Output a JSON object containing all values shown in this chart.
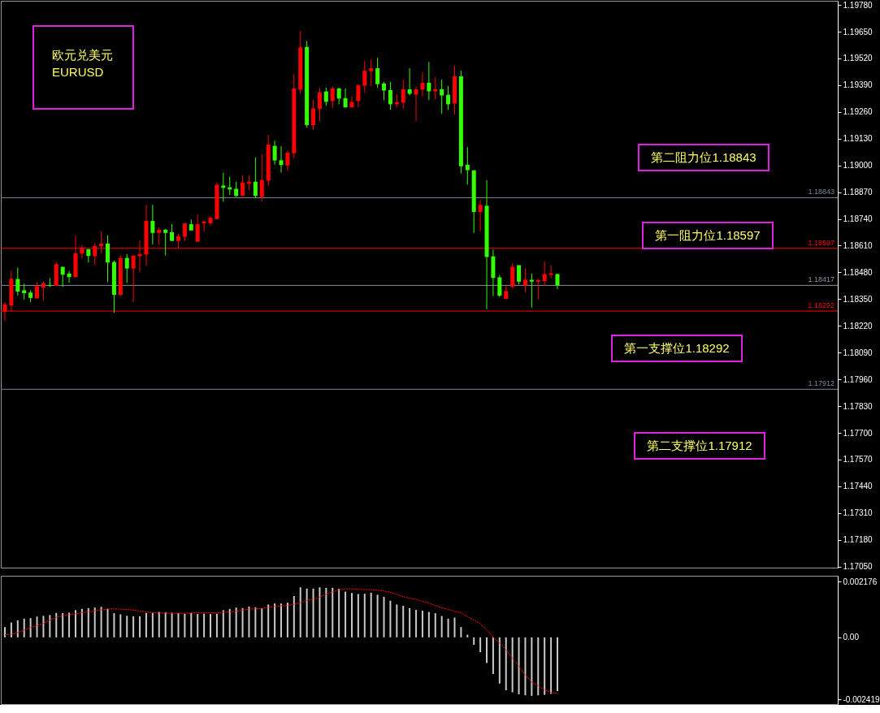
{
  "chart_data": [
    {
      "type": "candlestick",
      "title": "欧元兑美元",
      "subtitle": "EURUSD",
      "categories": [
        null,
        null,
        null,
        null,
        null,
        null,
        null,
        null,
        null,
        null,
        null,
        null,
        null,
        null,
        null,
        null,
        null,
        null,
        null,
        null,
        null,
        null,
        null,
        null,
        null,
        null,
        null,
        null,
        null,
        null,
        null,
        null,
        null,
        null,
        null,
        null,
        null,
        null,
        null,
        null,
        null,
        null,
        null,
        null,
        null,
        null,
        null,
        null,
        null,
        null,
        null,
        null,
        null,
        null,
        null,
        null,
        null,
        null,
        null,
        null,
        null,
        null,
        null,
        null,
        null,
        null,
        null,
        null,
        null,
        null,
        null,
        null,
        null,
        null,
        null,
        null,
        null,
        null,
        null,
        null,
        null,
        null,
        null,
        null,
        null,
        null,
        null,
        null,
        null,
        null,
        null,
        null,
        null,
        null,
        null,
        null,
        null,
        null,
        null,
        null,
        null,
        null,
        null,
        null,
        null,
        null,
        null,
        null,
        null,
        null,
        null,
        null,
        null,
        null,
        null,
        null,
        null,
        null,
        null,
        null,
        null,
        null,
        null,
        null,
        null,
        null,
        null,
        null,
        null,
        null
      ],
      "ohlc": [
        [
          1.18289,
          1.18335,
          1.18244,
          1.18324
        ],
        [
          1.18319,
          1.18489,
          1.18292,
          1.18449
        ],
        [
          1.18448,
          1.18503,
          1.18367,
          1.18387
        ],
        [
          1.18393,
          1.18425,
          1.18348,
          1.18379
        ],
        [
          1.18382,
          1.18393,
          1.18335,
          1.18356
        ],
        [
          1.18354,
          1.18433,
          1.18354,
          1.18413
        ],
        [
          1.18406,
          1.18436,
          1.18344,
          1.18427
        ],
        [
          1.18418,
          1.18452,
          1.1841,
          1.18414
        ],
        [
          1.18414,
          1.1853,
          1.18414,
          1.1852
        ],
        [
          1.18507,
          1.18507,
          1.1841,
          1.18469
        ],
        [
          1.18474,
          1.18487,
          1.1843,
          1.18457
        ],
        [
          1.18457,
          1.18659,
          1.18457,
          1.18573
        ],
        [
          1.18571,
          1.18612,
          1.1855,
          1.18601
        ],
        [
          1.18593,
          1.18593,
          1.18528,
          1.1856
        ],
        [
          1.18559,
          1.1862,
          1.18515,
          1.18608
        ],
        [
          1.18608,
          1.18679,
          1.18571,
          1.1862
        ],
        [
          1.1862,
          1.18659,
          1.18433,
          1.18528
        ],
        [
          1.1853,
          1.18538,
          1.18284,
          1.18371
        ],
        [
          1.18371,
          1.18562,
          1.18363,
          1.1855
        ],
        [
          1.1855,
          1.18569,
          1.18429,
          1.18499
        ],
        [
          1.18499,
          1.18562,
          1.18335,
          1.18562
        ],
        [
          1.18559,
          1.18636,
          1.18481,
          1.18569
        ],
        [
          1.18567,
          1.18808,
          1.18512,
          1.1873
        ],
        [
          1.1873,
          1.18808,
          1.18616,
          1.18672
        ],
        [
          1.18672,
          1.18698,
          1.18614,
          1.18687
        ],
        [
          1.18687,
          1.18691,
          1.18562,
          1.18672
        ],
        [
          1.18675,
          1.18714,
          1.18633,
          1.18633
        ],
        [
          1.18633,
          1.18667,
          1.18597,
          1.18655
        ],
        [
          1.18653,
          1.18718,
          1.18632,
          1.18718
        ],
        [
          1.18714,
          1.18737,
          1.18684,
          1.18684
        ],
        [
          1.18629,
          1.18761,
          1.18629,
          1.18714
        ],
        [
          1.18719,
          1.18734,
          1.18679,
          1.18727
        ],
        [
          1.18719,
          1.18754,
          1.18707,
          1.18745
        ],
        [
          1.18739,
          1.18917,
          1.18739,
          1.18906
        ],
        [
          1.18902,
          1.18964,
          1.18823,
          1.18891
        ],
        [
          1.18894,
          1.18945,
          1.18856,
          1.18883
        ],
        [
          1.18886,
          1.18921,
          1.18847,
          1.18852
        ],
        [
          1.18852,
          1.18949,
          1.18852,
          1.18917
        ],
        [
          1.18911,
          1.18952,
          1.18882,
          1.18921
        ],
        [
          1.18921,
          1.19038,
          1.18843,
          1.18852
        ],
        [
          1.18847,
          1.19054,
          1.18823,
          1.18929
        ],
        [
          1.18926,
          1.19148,
          1.18901,
          1.19101
        ],
        [
          1.19095,
          1.1912,
          1.19004,
          1.19024
        ],
        [
          1.19025,
          1.19093,
          1.18965,
          1.19002
        ],
        [
          1.19,
          1.19073,
          1.18973,
          1.19062
        ],
        [
          1.19059,
          1.19445,
          1.19035,
          1.19374
        ],
        [
          1.19368,
          1.19652,
          1.19348,
          1.19574
        ],
        [
          1.19576,
          1.19605,
          1.19184,
          1.19196
        ],
        [
          1.19196,
          1.1932,
          1.19172,
          1.19277
        ],
        [
          1.19274,
          1.19378,
          1.19215,
          1.19355
        ],
        [
          1.19359,
          1.19378,
          1.1929,
          1.19309
        ],
        [
          1.19313,
          1.19382,
          1.19278,
          1.19374
        ],
        [
          1.19374,
          1.19378,
          1.19297,
          1.19325
        ],
        [
          1.19327,
          1.19374,
          1.19282,
          1.19282
        ],
        [
          1.19282,
          1.19335,
          1.19282,
          1.19308
        ],
        [
          1.19313,
          1.19394,
          1.19282,
          1.1939
        ],
        [
          1.19387,
          1.19507,
          1.19352,
          1.1946
        ],
        [
          1.19458,
          1.19515,
          1.19387,
          1.19472
        ],
        [
          1.19472,
          1.19523,
          1.19376,
          1.19395
        ],
        [
          1.19398,
          1.19406,
          1.19317,
          1.19364
        ],
        [
          1.19366,
          1.19406,
          1.1927,
          1.19297
        ],
        [
          1.19297,
          1.19347,
          1.19282,
          1.19308
        ],
        [
          1.19305,
          1.19417,
          1.19274,
          1.1937
        ],
        [
          1.1937,
          1.19472,
          1.1934,
          1.19348
        ],
        [
          1.19344,
          1.19382,
          1.19215,
          1.1937
        ],
        [
          1.19368,
          1.19452,
          1.19336,
          1.19402
        ],
        [
          1.19402,
          1.19503,
          1.19317,
          1.1936
        ],
        [
          1.1936,
          1.19429,
          1.19321,
          1.1937
        ],
        [
          1.1937,
          1.19417,
          1.1925,
          1.1934
        ],
        [
          1.19343,
          1.19386,
          1.1927,
          1.19297
        ],
        [
          1.19301,
          1.19484,
          1.19247,
          1.19433
        ],
        [
          1.19433,
          1.1946,
          1.18961,
          1.18996
        ],
        [
          1.19003,
          1.19089,
          1.18907,
          1.18977
        ],
        [
          1.18976,
          1.18976,
          1.18672,
          1.18774
        ],
        [
          1.18774,
          1.18831,
          1.1868,
          1.18808
        ],
        [
          1.18804,
          1.18928,
          1.18301,
          1.18555
        ],
        [
          1.18558,
          1.18591,
          1.18365,
          1.18453
        ],
        [
          1.18456,
          1.18468,
          1.18361,
          1.18367
        ],
        [
          1.18352,
          1.18413,
          1.18348,
          1.18389
        ],
        [
          1.1841,
          1.18526,
          1.18404,
          1.18507
        ],
        [
          1.18515,
          1.18515,
          1.18422,
          1.18435
        ],
        [
          1.18416,
          1.18499,
          1.18383,
          1.18444
        ],
        [
          1.18444,
          1.18475,
          1.18309,
          1.18435
        ],
        [
          1.18435,
          1.18448,
          1.18348,
          1.18442
        ],
        [
          1.18438,
          1.18534,
          1.18414,
          1.18472
        ],
        [
          1.18468,
          1.18515,
          1.18452,
          1.18475
        ],
        [
          1.18472,
          1.18472,
          1.18399,
          1.18417
        ],
        null,
        null,
        null,
        null,
        null,
        null,
        null,
        null,
        null,
        null,
        null,
        null,
        null,
        null,
        null,
        null,
        null,
        null,
        null,
        null,
        null,
        null,
        null,
        null,
        null,
        null,
        null,
        null,
        null,
        null,
        null,
        null,
        null,
        null,
        null,
        null,
        null,
        null,
        null,
        null,
        null,
        null,
        null
      ],
      "colors": [
        "#ff0000",
        "#ff0000",
        "#33ff00",
        "#33ff00",
        "#33ff00",
        "#ff0000",
        "#ff0000",
        "#33ff00",
        "#ff0000",
        "#33ff00",
        "#33ff00",
        "#ff0000",
        "#ff0000",
        "#33ff00",
        "#ff0000",
        "#ff0000",
        "#33ff00",
        "#33ff00",
        "#ff0000",
        "#33ff00",
        "#ff0000",
        "#ff0000",
        "#ff0000",
        "#33ff00",
        "#ff0000",
        "#33ff00",
        "#33ff00",
        "#ff0000",
        "#ff0000",
        "#33ff00",
        "#ff0000",
        "#ff0000",
        "#ff0000",
        "#ff0000",
        "#33ff00",
        "#33ff00",
        "#33ff00",
        "#ff0000",
        "#ff0000",
        "#33ff00",
        "#ff0000",
        "#ff0000",
        "#33ff00",
        "#33ff00",
        "#ff0000",
        "#ff0000",
        "#ff0000",
        "#33ff00",
        "#ff0000",
        "#ff0000",
        "#33ff00",
        "#ff0000",
        "#33ff00",
        "#33ff00",
        "#ff0000",
        "#ff0000",
        "#ff0000",
        "#ff0000",
        "#33ff00",
        "#33ff00",
        "#33ff00",
        "#ff0000",
        "#ff0000",
        "#33ff00",
        "#ff0000",
        "#ff0000",
        "#33ff00",
        "#ff0000",
        "#33ff00",
        "#33ff00",
        "#ff0000",
        "#33ff00",
        "#33ff00",
        "#33ff00",
        "#ff0000",
        "#33ff00",
        "#33ff00",
        "#33ff00",
        "#ff0000",
        "#ff0000",
        "#33ff00",
        "#ff0000",
        "#33ff00",
        "#ff0000",
        "#ff0000",
        "#ff0000",
        "#33ff00",
        null,
        null,
        null,
        null,
        null,
        null,
        null,
        null,
        null,
        null,
        null,
        null,
        null,
        null,
        null,
        null,
        null,
        null,
        null,
        null,
        null,
        null,
        null,
        null,
        null,
        null,
        null,
        null,
        null,
        null,
        null,
        null,
        null,
        null,
        null,
        null,
        null,
        null,
        null,
        null,
        null,
        null,
        null
      ],
      "ylim": [
        1.17045,
        1.198
      ],
      "yticks": [
        {
          "value": 1.1978,
          "label": "1.19780"
        },
        {
          "value": 1.1965,
          "label": "1.19650"
        },
        {
          "value": 1.1952,
          "label": "1.19520"
        },
        {
          "value": 1.1939,
          "label": "1.19390"
        },
        {
          "value": 1.1926,
          "label": "1.19260"
        },
        {
          "value": 1.1913,
          "label": "1.19130"
        },
        {
          "value": 1.19,
          "label": "1.19000"
        },
        {
          "value": 1.1887,
          "label": "1.18870"
        },
        {
          "value": 1.1874,
          "label": "1.18740"
        },
        {
          "value": 1.1861,
          "label": "1.18610"
        },
        {
          "value": 1.1848,
          "label": "1.18480"
        },
        {
          "value": 1.1835,
          "label": "1.18350"
        },
        {
          "value": 1.1822,
          "label": "1.18220"
        },
        {
          "value": 1.1809,
          "label": "1.18090"
        },
        {
          "value": 1.1796,
          "label": "1.17960"
        },
        {
          "value": 1.1783,
          "label": "1.17830"
        },
        {
          "value": 1.177,
          "label": "1.17700"
        },
        {
          "value": 1.1757,
          "label": "1.17570"
        },
        {
          "value": 1.1744,
          "label": "1.17440"
        },
        {
          "value": 1.1731,
          "label": "1.17310"
        },
        {
          "value": 1.1718,
          "label": "1.17180"
        },
        {
          "value": 1.1705,
          "label": "1.17050"
        }
      ],
      "ref_lines": [
        {
          "axis": "y",
          "value": 1.18843,
          "label": "1.18843",
          "color": "#7a8599"
        },
        {
          "axis": "y",
          "value": 1.18597,
          "label": "1.18597",
          "color": "#ff0000"
        },
        {
          "axis": "y",
          "value": 1.18417,
          "label": "1.18417",
          "color": "#8a9099"
        },
        {
          "axis": "y",
          "value": 1.18292,
          "label": "1.18292",
          "color": "#ff0000"
        },
        {
          "axis": "y",
          "value": 1.17912,
          "label": "1.17912",
          "color": "#7a8599"
        }
      ],
      "annotations": [
        "第二阻力位1.18843",
        "第一阻力位1.18597",
        "第一支撑位1.18292",
        "第二支撑位1.17912"
      ],
      "tick_labels": "y"
    },
    {
      "type": "bar",
      "categories": [
        null,
        null,
        null,
        null,
        null,
        null,
        null,
        null,
        null,
        null,
        null,
        null,
        null,
        null,
        null,
        null,
        null,
        null,
        null,
        null,
        null,
        null,
        null,
        null,
        null,
        null,
        null,
        null,
        null,
        null,
        null,
        null,
        null,
        null,
        null,
        null,
        null,
        null,
        null,
        null,
        null,
        null,
        null,
        null,
        null,
        null,
        null,
        null,
        null,
        null,
        null,
        null,
        null,
        null,
        null,
        null,
        null,
        null,
        null,
        null,
        null,
        null,
        null,
        null,
        null,
        null,
        null,
        null,
        null,
        null,
        null,
        null,
        null,
        null,
        null,
        null,
        null,
        null,
        null,
        null,
        null,
        null,
        null,
        null,
        null,
        null,
        null,
        null,
        null,
        null,
        null,
        null,
        null,
        null,
        null,
        null,
        null,
        null,
        null,
        null,
        null,
        null,
        null,
        null,
        null,
        null,
        null,
        null,
        null,
        null,
        null,
        null,
        null,
        null,
        null,
        null,
        null,
        null,
        null,
        null,
        null,
        null,
        null,
        null,
        null,
        null,
        null,
        null,
        null,
        null
      ],
      "series": [
        {
          "type": "bar",
          "color": "#c8c8c8",
          "values": [
            0.0004,
            0.00058,
            0.00066,
            0.00073,
            0.00075,
            0.00081,
            0.00084,
            0.00087,
            0.00095,
            0.00095,
            0.00096,
            0.00106,
            0.00111,
            0.00114,
            0.00116,
            0.00119,
            0.00111,
            0.00094,
            0.0009,
            0.00084,
            0.00082,
            0.00082,
            0.00095,
            0.00096,
            0.00099,
            0.00098,
            0.00096,
            0.00094,
            0.00092,
            0.00095,
            0.00091,
            0.00092,
            0.00091,
            0.00092,
            0.00106,
            0.00111,
            0.00116,
            0.00114,
            0.0012,
            0.00117,
            0.00114,
            0.00128,
            0.00132,
            0.00132,
            0.00135,
            0.00161,
            0.00195,
            0.0019,
            0.0019,
            0.00195,
            0.00193,
            0.00193,
            0.00189,
            0.00178,
            0.00173,
            0.00169,
            0.0017,
            0.00174,
            0.00166,
            0.00158,
            0.00143,
            0.00128,
            0.00123,
            0.00114,
            0.00107,
            0.00104,
            0.00099,
            0.00094,
            0.00083,
            0.00073,
            0.00077,
            0.0004,
            0.0001,
            -0.00029,
            -0.00058,
            -0.001,
            -0.00143,
            -0.0018,
            -0.00206,
            -0.00214,
            -0.00222,
            -0.00226,
            -0.00228,
            -0.00226,
            -0.00224,
            -0.0022,
            -0.00209,
            null,
            null,
            null,
            null,
            null,
            null,
            null,
            null,
            null,
            null,
            null,
            null,
            null,
            null,
            null,
            null,
            null,
            null,
            null,
            null,
            null,
            null,
            null,
            null,
            null,
            null,
            null,
            null,
            null,
            null,
            null,
            null,
            null,
            null,
            null,
            null,
            null,
            null,
            null,
            null,
            null,
            null,
            null
          ]
        },
        {
          "type": "line",
          "color": "#ff0000",
          "line_style": "dotted",
          "values": [
            0.0001,
            0.00012,
            0.00018,
            0.00028,
            0.00038,
            0.00046,
            0.00055,
            0.00067,
            0.00078,
            0.00084,
            0.00088,
            0.00092,
            0.00096,
            0.001,
            0.00103,
            0.00107,
            0.0011,
            0.00111,
            0.0011,
            0.00108,
            0.00106,
            0.00103,
            0.00099,
            0.00096,
            0.00095,
            0.00095,
            0.00094,
            0.00094,
            0.00094,
            0.00095,
            0.00096,
            0.00096,
            0.00096,
            0.00096,
            0.00098,
            0.00099,
            0.00102,
            0.00106,
            0.0011,
            0.00111,
            0.00112,
            0.00117,
            0.00121,
            0.00123,
            0.00124,
            0.00128,
            0.00135,
            0.00144,
            0.0015,
            0.00157,
            0.00168,
            0.00177,
            0.00185,
            0.00189,
            0.00189,
            0.00187,
            0.00186,
            0.00186,
            0.00183,
            0.00181,
            0.00176,
            0.00168,
            0.00158,
            0.00153,
            0.00148,
            0.00141,
            0.00133,
            0.00124,
            0.00116,
            0.00108,
            0.00102,
            0.00095,
            0.00081,
            0.00067,
            0.00053,
            0.00029,
            0.0,
            -0.00022,
            -0.00049,
            -0.00081,
            -0.00112,
            -0.00147,
            -0.00174,
            -0.00189,
            -0.00205,
            -0.00214,
            -0.00219,
            null,
            null,
            null,
            null,
            null,
            null,
            null,
            null,
            null,
            null,
            null,
            null,
            null,
            null,
            null,
            null,
            null,
            null,
            null,
            null,
            null,
            null,
            null,
            null,
            null,
            null,
            null,
            null,
            null,
            null,
            null,
            null,
            null,
            null,
            null,
            null,
            null,
            null,
            null,
            null,
            null,
            null,
            null
          ]
        }
      ],
      "ylim": [
        -0.0026,
        0.0024
      ],
      "yticks": [
        {
          "value": 0.002176,
          "label": "0.002176"
        },
        {
          "value": 0,
          "label": "0.00"
        },
        {
          "value": -0.002419,
          "label": "-0.002419"
        }
      ],
      "tick_labels": "y"
    }
  ]
}
